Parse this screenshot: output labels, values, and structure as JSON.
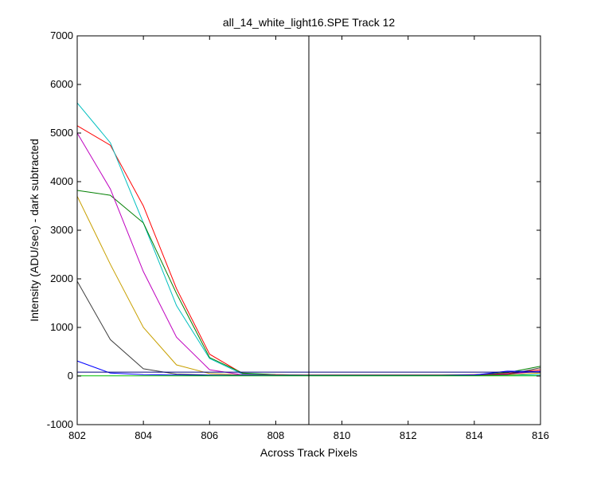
{
  "chart_data": {
    "type": "line",
    "title": "all_14_white_light16.SPE   Track 12",
    "xlabel": "Across Track Pixels",
    "ylabel": "Intensity (ADU/sec) - dark subtracted",
    "xlim": [
      802,
      816
    ],
    "ylim": [
      -1000,
      7000
    ],
    "xticks": [
      802,
      804,
      806,
      808,
      810,
      812,
      814,
      816
    ],
    "yticks": [
      -1000,
      0,
      1000,
      2000,
      3000,
      4000,
      5000,
      6000,
      7000
    ],
    "grid": false,
    "legend": "none",
    "vertical_line_x": 809,
    "x": [
      802,
      803,
      804,
      805,
      806,
      807,
      808,
      809,
      810,
      811,
      812,
      813,
      814,
      815,
      816
    ],
    "series": [
      {
        "color": "#ff0000",
        "values": [
          5150,
          4750,
          3500,
          1800,
          450,
          50,
          30,
          20,
          20,
          20,
          20,
          20,
          30,
          50,
          130
        ]
      },
      {
        "color": "#00bfbf",
        "values": [
          5620,
          4800,
          3150,
          1450,
          360,
          40,
          25,
          15,
          15,
          15,
          15,
          10,
          15,
          20,
          30
        ]
      },
      {
        "color": "#007f00",
        "values": [
          3820,
          3720,
          3150,
          1700,
          380,
          60,
          30,
          20,
          20,
          20,
          20,
          20,
          25,
          70,
          200
        ]
      },
      {
        "color": "#bf00bf",
        "values": [
          5000,
          3850,
          2150,
          800,
          130,
          25,
          20,
          15,
          15,
          15,
          15,
          15,
          20,
          40,
          100
        ]
      },
      {
        "color": "#c8a000",
        "values": [
          3700,
          2300,
          1000,
          230,
          50,
          20,
          15,
          10,
          10,
          10,
          10,
          10,
          15,
          25,
          60
        ]
      },
      {
        "color": "#3f3f3f",
        "values": [
          1950,
          750,
          150,
          40,
          20,
          15,
          10,
          10,
          10,
          10,
          10,
          10,
          15,
          30,
          170
        ]
      },
      {
        "color": "#0000ff",
        "values": [
          310,
          60,
          30,
          20,
          15,
          15,
          10,
          10,
          10,
          10,
          10,
          10,
          20,
          100,
          90
        ]
      },
      {
        "color": "#00007f",
        "values": [
          80,
          80,
          80,
          80,
          80,
          80,
          80,
          80,
          80,
          80,
          80,
          80,
          80,
          80,
          80
        ]
      },
      {
        "color": "#00bf00",
        "values": [
          5,
          5,
          5,
          5,
          5,
          5,
          5,
          5,
          5,
          5,
          5,
          5,
          5,
          5,
          5
        ]
      }
    ]
  }
}
